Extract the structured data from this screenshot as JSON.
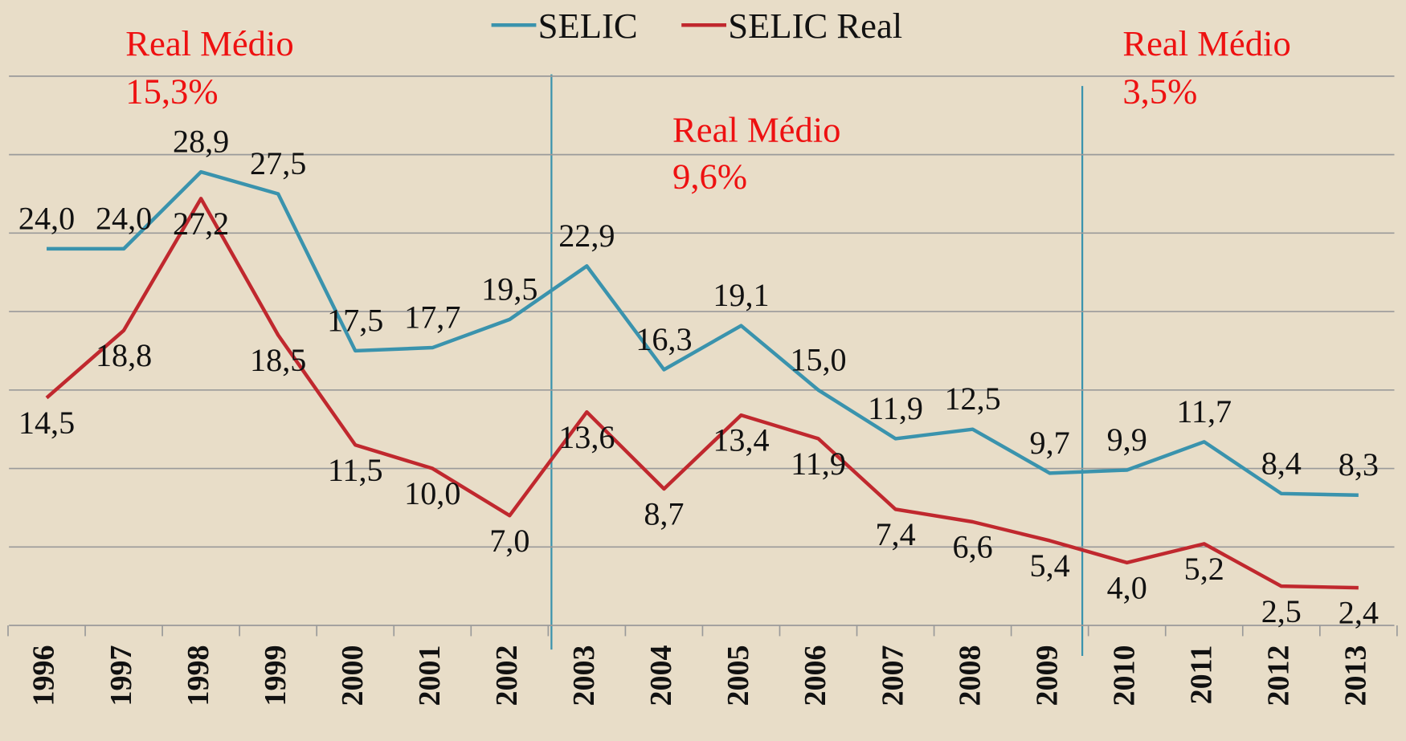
{
  "chart_data": {
    "type": "line",
    "categories": [
      "1996",
      "1997",
      "1998",
      "1999",
      "2000",
      "2001",
      "2002",
      "2003",
      "2004",
      "2005",
      "2006",
      "2007",
      "2008",
      "2009",
      "2010",
      "2011",
      "2012",
      "2013"
    ],
    "series": [
      {
        "name": "SELIC",
        "color": "#3a93ad",
        "values": [
          24.0,
          24.0,
          28.9,
          27.5,
          17.5,
          17.7,
          19.5,
          22.9,
          16.3,
          19.1,
          15.0,
          11.9,
          12.5,
          9.7,
          9.9,
          11.7,
          8.4,
          8.3
        ],
        "value_labels": [
          "24,0",
          "24,0",
          "28,9",
          "27,5",
          "17,5",
          "17,7",
          "19,5",
          "22,9",
          "16,3",
          "19,1",
          "15,0",
          "11,9",
          "12,5",
          "9,7",
          "9,9",
          "11,7",
          "8,4",
          "8,3"
        ]
      },
      {
        "name": "SELIC Real",
        "color": "#c0282e",
        "values": [
          14.5,
          18.8,
          27.2,
          18.5,
          11.5,
          10.0,
          7.0,
          13.6,
          8.7,
          13.4,
          11.9,
          7.4,
          6.6,
          5.4,
          4.0,
          5.2,
          2.5,
          2.4
        ],
        "value_labels": [
          "14,5",
          "18,8",
          "27,2",
          "18,5",
          "11,5",
          "10,0",
          "7,0",
          "13,6",
          "8,7",
          "13,4",
          "11,9",
          "7,4",
          "6,6",
          "5,4",
          "4,0",
          "5,2",
          "2,5",
          "2,4"
        ]
      }
    ],
    "ylim": [
      0,
      35
    ],
    "yticks": [
      0,
      5,
      10,
      15,
      20,
      25,
      30,
      35
    ],
    "grid": true,
    "legend": "top",
    "annotations": [
      {
        "text": "Real Médio",
        "value": "15,3%"
      },
      {
        "text": "Real Médio",
        "value": "9,6%"
      },
      {
        "text": "Real Médio",
        "value": "3,5%"
      }
    ]
  }
}
